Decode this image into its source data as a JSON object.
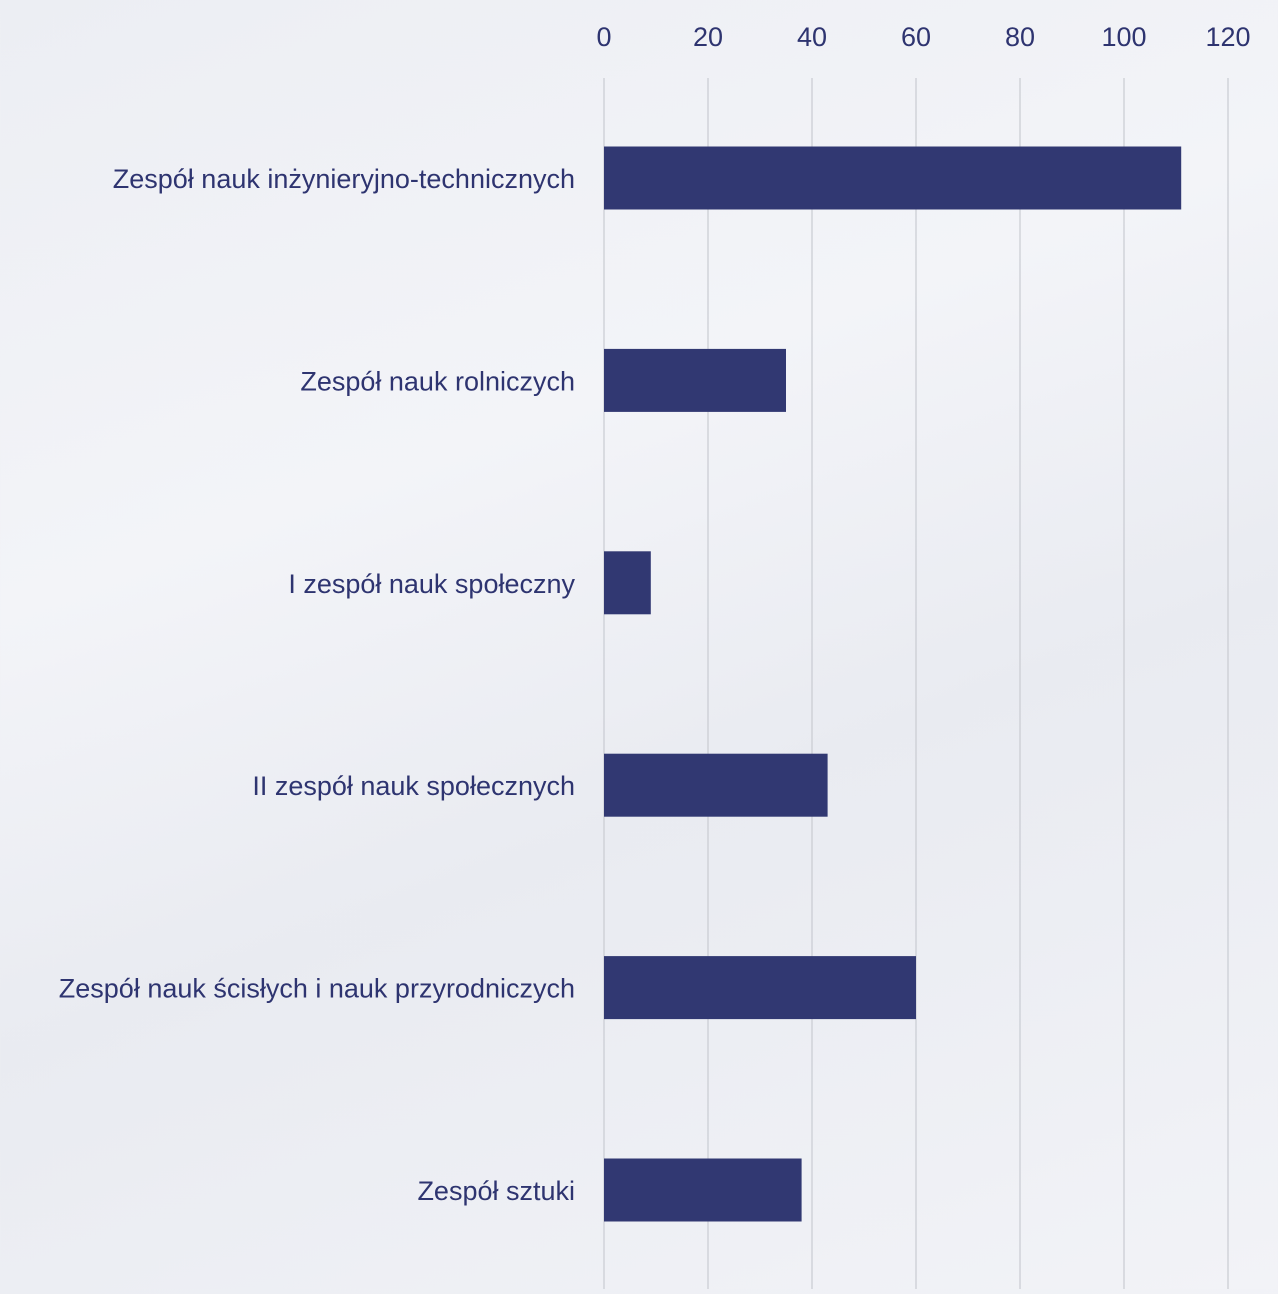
{
  "chart_data": {
    "type": "bar",
    "orientation": "horizontal",
    "categories": [
      "Zespół nauk inżynieryjno-technicznych",
      "Zespół nauk rolniczych",
      "I zespół nauk społeczny",
      "II zespół nauk społecznych",
      "Zespół nauk ścisłych i nauk przyrodniczych",
      "Zespół sztuki"
    ],
    "values": [
      111,
      35,
      9,
      43,
      60,
      38
    ],
    "xlim": [
      0,
      120
    ],
    "ticks": [
      0,
      20,
      40,
      60,
      80,
      100,
      120
    ],
    "tick_labels": [
      "0",
      "20",
      "40",
      "60",
      "80",
      "100",
      "120"
    ],
    "axis_position": "top",
    "grid": true,
    "legend": "none",
    "title": "",
    "xlabel": "",
    "ylabel": ""
  },
  "colors": {
    "bar": "#313872",
    "text": "#2e3470",
    "grid": "#c9cbd2"
  }
}
